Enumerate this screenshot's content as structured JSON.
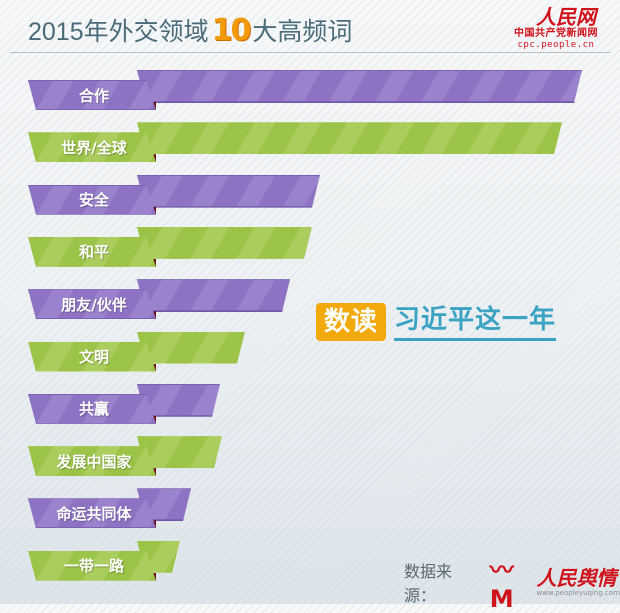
{
  "header": {
    "title_prefix": "2015年外交领域",
    "title_number": "10",
    "title_suffix": "大高频词",
    "brand_logo": "人民网",
    "brand_sub": "中国共产党新闻网",
    "brand_url": "cpc.people.cn"
  },
  "badge": {
    "label": "数读",
    "text": "习近平这一年"
  },
  "source": {
    "label": "数据来源：",
    "mark": "〰M",
    "name": "人民舆情",
    "url": "www.peopleyuqing.com"
  },
  "colors": {
    "purple": "#8e73c4",
    "green": "#9cc448",
    "title": "#4a6b7a",
    "accent_orange": "#f2a90b",
    "accent_blue": "#3aa2c3",
    "brand_red": "#d0121b"
  },
  "chart_data": {
    "type": "bar",
    "orientation": "horizontal",
    "title": "2015年外交领域10大高频词",
    "categories": [
      "合作",
      "世界/全球",
      "安全",
      "和平",
      "朋友/伙伴",
      "文明",
      "共赢",
      "发展中国家",
      "命运共同体",
      "一带一路"
    ],
    "values": [
      445,
      425,
      183,
      175,
      153,
      108,
      83,
      85,
      54,
      43
    ],
    "value_unit": "relative bar length (px beyond label tab); no numeric values shown",
    "bar_colors": [
      "purple",
      "green",
      "purple",
      "green",
      "purple",
      "green",
      "purple",
      "green",
      "purple",
      "green"
    ],
    "xlabel": "",
    "ylabel": "",
    "grid": false,
    "legend": null
  },
  "rows": [
    {
      "label": "合作",
      "end": 582,
      "color": "purple"
    },
    {
      "label": "世界/全球",
      "end": 562,
      "color": "green"
    },
    {
      "label": "安全",
      "end": 320,
      "color": "purple"
    },
    {
      "label": "和平",
      "end": 312,
      "color": "green"
    },
    {
      "label": "朋友/伙伴",
      "end": 290,
      "color": "purple"
    },
    {
      "label": "文明",
      "end": 245,
      "color": "green"
    },
    {
      "label": "共赢",
      "end": 220,
      "color": "purple"
    },
    {
      "label": "发展中国家",
      "end": 222,
      "color": "green"
    },
    {
      "label": "命运共同体",
      "end": 191,
      "color": "purple"
    },
    {
      "label": "一带一路",
      "end": 180,
      "color": "green"
    }
  ]
}
